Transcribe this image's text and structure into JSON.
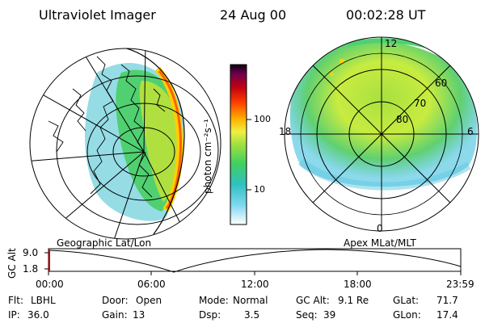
{
  "header": {
    "title": "Ultraviolet Imager",
    "date": "24 Aug 00",
    "time": "00:02:28 UT"
  },
  "colorbar": {
    "unit_label": "photon cm⁻²s⁻¹",
    "tick_labels": [
      "100",
      "10"
    ]
  },
  "left_panel": {
    "caption": "Geographic Lat/Lon"
  },
  "right_panel": {
    "caption": "Apex MLat/MLT",
    "mlt_labels": {
      "top": "12",
      "left": "18",
      "right": "6",
      "bottom": "0"
    },
    "lat_labels": [
      "60",
      "70",
      "80"
    ]
  },
  "altitude_plot": {
    "ylabel": "GC Alt",
    "y_ticks": [
      "9.0",
      "1.8"
    ],
    "x_ticks": [
      "00:00",
      "06:00",
      "12:00",
      "18:00",
      "23:59"
    ]
  },
  "status": {
    "row1": [
      {
        "label": "Flt:",
        "value": "LBHL"
      },
      {
        "label": "Door:",
        "value": "Open"
      },
      {
        "label": "Mode:",
        "value": "Normal"
      },
      {
        "label": "GC Alt:",
        "value": "9.1 Re"
      },
      {
        "label": "GLat:",
        "value": "71.7"
      }
    ],
    "row2": [
      {
        "label": "IP:",
        "value": "36.0"
      },
      {
        "label": "Gain:",
        "value": "13"
      },
      {
        "label": "Dsp:",
        "value": "3.5"
      },
      {
        "label": "Seq:",
        "value": "39"
      },
      {
        "label": "GLon:",
        "value": "17.4"
      }
    ]
  },
  "colors": {
    "scale": [
      "#ffffff",
      "#40c0e0",
      "#40d090",
      "#90e040",
      "#e0f040",
      "#ffb000",
      "#ff6000",
      "#e00000",
      "#900040",
      "#200020"
    ]
  }
}
